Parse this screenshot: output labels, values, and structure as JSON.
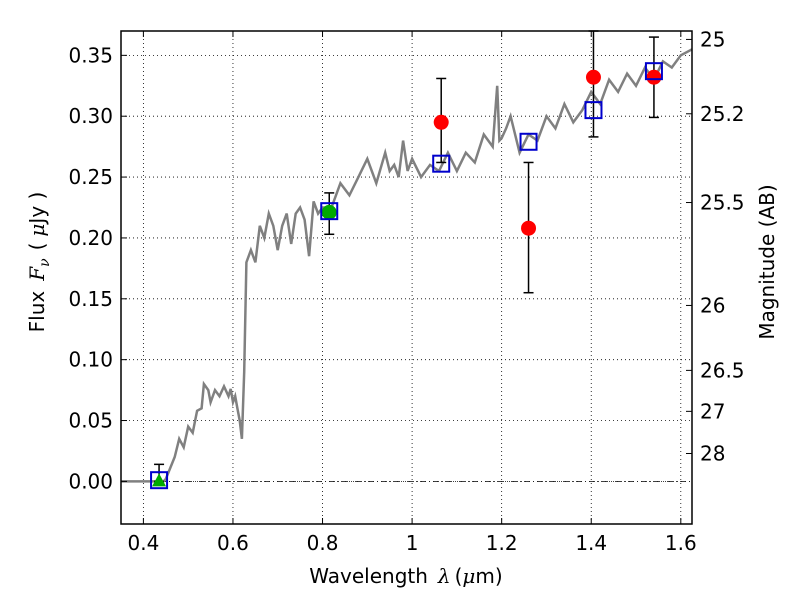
{
  "chart_data": {
    "type": "line",
    "xlabel": "Wavelength",
    "xlabel_symbol": "λ",
    "xlabel_unit_open": "(",
    "xlabel_unit_mu": "μ",
    "xlabel_unit_rest": "m)",
    "ylabel": "Flux",
    "ylabel_symbol": "F",
    "ylabel_sub": "ν",
    "ylabel_unit_open": "(",
    "ylabel_unit_mu": "μ",
    "ylabel_unit_rest": "Jy )",
    "y2label": "Magnitude (AB)",
    "xlim": [
      0.35,
      1.625
    ],
    "ylim": [
      -0.035,
      0.37
    ],
    "grid": true,
    "x_ticks": [
      {
        "v": 0.4,
        "label": "0.4"
      },
      {
        "v": 0.6,
        "label": "0.6"
      },
      {
        "v": 0.8,
        "label": "0.8"
      },
      {
        "v": 1.0,
        "label": "1"
      },
      {
        "v": 1.2,
        "label": "1.2"
      },
      {
        "v": 1.4,
        "label": "1.4"
      },
      {
        "v": 1.6,
        "label": "1.6"
      }
    ],
    "y_ticks": [
      {
        "v": 0.0,
        "label": "0.00"
      },
      {
        "v": 0.05,
        "label": "0.05"
      },
      {
        "v": 0.1,
        "label": "0.10"
      },
      {
        "v": 0.15,
        "label": "0.15"
      },
      {
        "v": 0.2,
        "label": "0.20"
      },
      {
        "v": 0.25,
        "label": "0.25"
      },
      {
        "v": 0.3,
        "label": "0.30"
      },
      {
        "v": 0.35,
        "label": "0.35"
      }
    ],
    "mag_ticks": [
      {
        "mag": 25,
        "label": "25"
      },
      {
        "mag": 25.2,
        "label": "25.2"
      },
      {
        "mag": 25.5,
        "label": "25.5"
      },
      {
        "mag": 26,
        "label": "26"
      },
      {
        "mag": 26.5,
        "label": "26.5"
      },
      {
        "mag": 27,
        "label": "27"
      },
      {
        "mag": 28,
        "label": "28"
      }
    ],
    "mag_zero_point": 23.9,
    "model_spectrum": {
      "color": "#808080",
      "x": [
        0.35,
        0.43,
        0.44,
        0.45,
        0.47,
        0.48,
        0.49,
        0.5,
        0.51,
        0.52,
        0.53,
        0.535,
        0.545,
        0.55,
        0.56,
        0.57,
        0.58,
        0.59,
        0.595,
        0.6,
        0.605,
        0.61,
        0.615,
        0.62,
        0.625,
        0.63,
        0.64,
        0.65,
        0.66,
        0.67,
        0.68,
        0.69,
        0.7,
        0.71,
        0.72,
        0.73,
        0.74,
        0.75,
        0.76,
        0.77,
        0.78,
        0.79,
        0.8,
        0.82,
        0.84,
        0.86,
        0.88,
        0.9,
        0.92,
        0.94,
        0.95,
        0.96,
        0.97,
        0.98,
        0.99,
        1.0,
        1.02,
        1.04,
        1.06,
        1.08,
        1.1,
        1.12,
        1.14,
        1.16,
        1.18,
        1.19,
        1.195,
        1.2,
        1.21,
        1.22,
        1.24,
        1.26,
        1.28,
        1.3,
        1.32,
        1.34,
        1.36,
        1.38,
        1.4,
        1.42,
        1.44,
        1.46,
        1.48,
        1.5,
        1.52,
        1.54,
        1.56,
        1.58,
        1.6,
        1.625
      ],
      "y": [
        0.0,
        0.0,
        -0.002,
        0.002,
        0.02,
        0.035,
        0.028,
        0.045,
        0.04,
        0.058,
        0.06,
        0.08,
        0.075,
        0.065,
        0.075,
        0.07,
        0.078,
        0.07,
        0.076,
        0.065,
        0.07,
        0.06,
        0.05,
        0.035,
        0.09,
        0.18,
        0.19,
        0.18,
        0.21,
        0.2,
        0.22,
        0.21,
        0.19,
        0.21,
        0.22,
        0.195,
        0.22,
        0.225,
        0.215,
        0.185,
        0.23,
        0.22,
        0.225,
        0.225,
        0.245,
        0.235,
        0.25,
        0.265,
        0.245,
        0.27,
        0.255,
        0.26,
        0.25,
        0.28,
        0.255,
        0.265,
        0.25,
        0.26,
        0.255,
        0.27,
        0.255,
        0.27,
        0.262,
        0.285,
        0.275,
        0.325,
        0.28,
        0.282,
        0.29,
        0.3,
        0.27,
        0.285,
        0.28,
        0.3,
        0.29,
        0.31,
        0.295,
        0.305,
        0.32,
        0.31,
        0.33,
        0.32,
        0.335,
        0.325,
        0.34,
        0.33,
        0.345,
        0.34,
        0.35,
        0.355
      ]
    },
    "model_photometry": {
      "color": "#0000cc",
      "points": [
        {
          "x": 0.435,
          "y": 0.001
        },
        {
          "x": 0.815,
          "y": 0.222
        },
        {
          "x": 1.065,
          "y": 0.261
        },
        {
          "x": 1.26,
          "y": 0.279
        },
        {
          "x": 1.405,
          "y": 0.305
        },
        {
          "x": 1.54,
          "y": 0.337
        }
      ]
    },
    "observed_points": {
      "color": "#ff0000",
      "points": [
        {
          "x": 1.065,
          "y": 0.295,
          "yerr_low": 0.262,
          "yerr_high": 0.331
        },
        {
          "x": 1.26,
          "y": 0.208,
          "yerr_low": 0.155,
          "yerr_high": 0.262
        },
        {
          "x": 1.405,
          "y": 0.332,
          "yerr_low": 0.283,
          "yerr_high": 0.37
        },
        {
          "x": 1.54,
          "y": 0.332,
          "yerr_low": 0.299,
          "yerr_high": 0.365
        }
      ]
    },
    "observed_green": {
      "color": "#00aa00",
      "point": {
        "x": 0.815,
        "y": 0.221,
        "yerr_low": 0.203,
        "yerr_high": 0.237
      }
    },
    "upper_limit": {
      "color": "#00aa00",
      "point": {
        "x": 0.435,
        "y": 0.0,
        "yerr_high": 0.014
      }
    }
  }
}
